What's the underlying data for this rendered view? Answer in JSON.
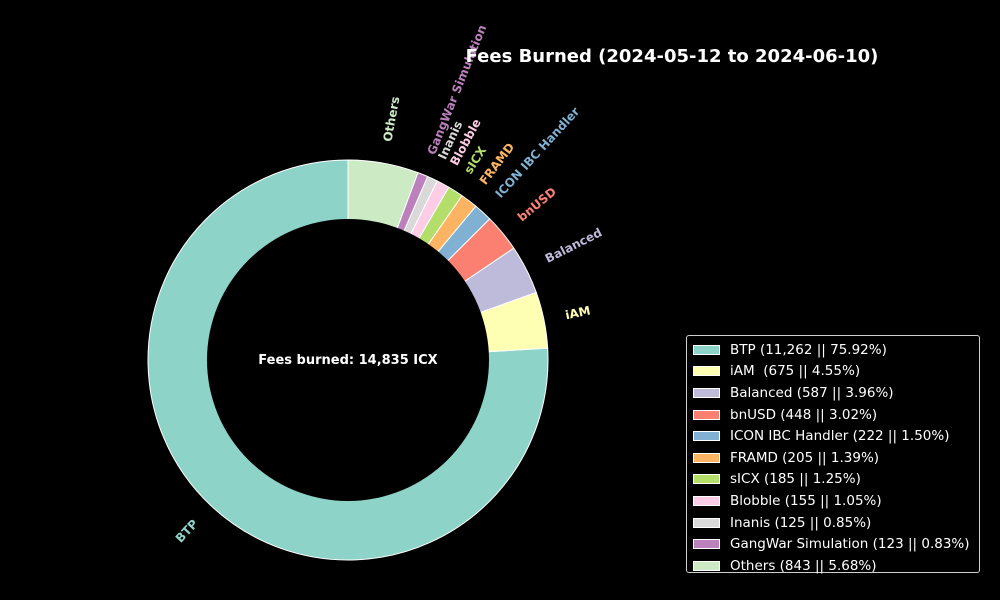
{
  "chart_data": {
    "type": "pie",
    "variant": "donut",
    "title": "Fees Burned (2024-05-12 to 2024-06-10)",
    "center_label": "Fees burned: 14,835 ICX",
    "start_angle_deg": 90,
    "direction": "counterclockwise",
    "legend_position": "lower-right",
    "background": "#000000",
    "slices": [
      {
        "label": "BTP",
        "value": 11262,
        "legend": "BTP (11,262 || 75.92%)",
        "color": "#8dd3c7"
      },
      {
        "label": "iAM",
        "value": 675,
        "legend": "iAM  (675 || 4.55%)",
        "color": "#ffffb3"
      },
      {
        "label": "Balanced",
        "value": 587,
        "legend": "Balanced (587 || 3.96%)",
        "color": "#bebada"
      },
      {
        "label": "bnUSD",
        "value": 448,
        "legend": "bnUSD (448 || 3.02%)",
        "color": "#fb8072"
      },
      {
        "label": "ICON IBC Handler",
        "value": 222,
        "legend": "ICON IBC Handler (222 || 1.50%)",
        "color": "#80b1d3"
      },
      {
        "label": "FRAMD",
        "value": 205,
        "legend": "FRAMD (205 || 1.39%)",
        "color": "#fdb462"
      },
      {
        "label": "sICX",
        "value": 185,
        "legend": "sICX (185 || 1.25%)",
        "color": "#b3de69"
      },
      {
        "label": "Blobble",
        "value": 155,
        "legend": "Blobble (155 || 1.05%)",
        "color": "#fccde5"
      },
      {
        "label": "Inanis",
        "value": 125,
        "legend": "Inanis (125 || 0.85%)",
        "color": "#d9d9d9"
      },
      {
        "label": "GangWar Simulation",
        "value": 123,
        "legend": "GangWar Simulation (123 || 0.83%)",
        "color": "#bc80bd"
      },
      {
        "label": "Others",
        "value": 843,
        "legend": "Others (843 || 5.68%)",
        "color": "#ccebc5"
      }
    ]
  }
}
